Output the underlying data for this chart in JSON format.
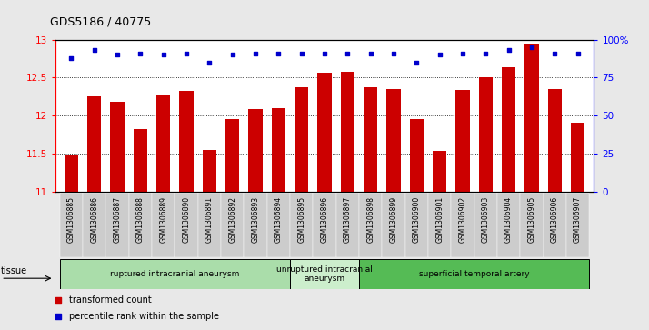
{
  "title": "GDS5186 / 40775",
  "samples": [
    "GSM1306885",
    "GSM1306886",
    "GSM1306887",
    "GSM1306888",
    "GSM1306889",
    "GSM1306890",
    "GSM1306891",
    "GSM1306892",
    "GSM1306893",
    "GSM1306894",
    "GSM1306895",
    "GSM1306896",
    "GSM1306897",
    "GSM1306898",
    "GSM1306899",
    "GSM1306900",
    "GSM1306901",
    "GSM1306902",
    "GSM1306903",
    "GSM1306904",
    "GSM1306905",
    "GSM1306906",
    "GSM1306907"
  ],
  "bar_values": [
    11.47,
    12.25,
    12.18,
    11.82,
    12.28,
    12.32,
    11.55,
    11.95,
    12.08,
    12.1,
    12.37,
    12.56,
    12.58,
    12.37,
    12.35,
    11.95,
    11.53,
    12.33,
    12.5,
    12.63,
    12.95,
    12.35,
    11.9
  ],
  "percentile_values": [
    88,
    93,
    90,
    91,
    90,
    91,
    85,
    90,
    91,
    91,
    91,
    91,
    91,
    91,
    91,
    85,
    90,
    91,
    91,
    93,
    95,
    91,
    91
  ],
  "bar_color": "#cc0000",
  "percentile_color": "#0000cc",
  "ymin": 11,
  "ymax": 13,
  "yticks": [
    11,
    11.5,
    12,
    12.5,
    13
  ],
  "right_yticks": [
    0,
    25,
    50,
    75,
    100
  ],
  "right_ylabels": [
    "0",
    "25",
    "50",
    "75",
    "100%"
  ],
  "groups": [
    {
      "label": "ruptured intracranial aneurysm",
      "start": 0,
      "end": 10,
      "color": "#aaddaa"
    },
    {
      "label": "unruptured intracranial\naneurysm",
      "start": 10,
      "end": 13,
      "color": "#cceecc"
    },
    {
      "label": "superficial temporal artery",
      "start": 13,
      "end": 23,
      "color": "#55bb55"
    }
  ],
  "tissue_label": "tissue",
  "legend_bar_label": "transformed count",
  "legend_pct_label": "percentile rank within the sample",
  "fig_bg": "#e8e8e8",
  "plot_bg": "#ffffff"
}
